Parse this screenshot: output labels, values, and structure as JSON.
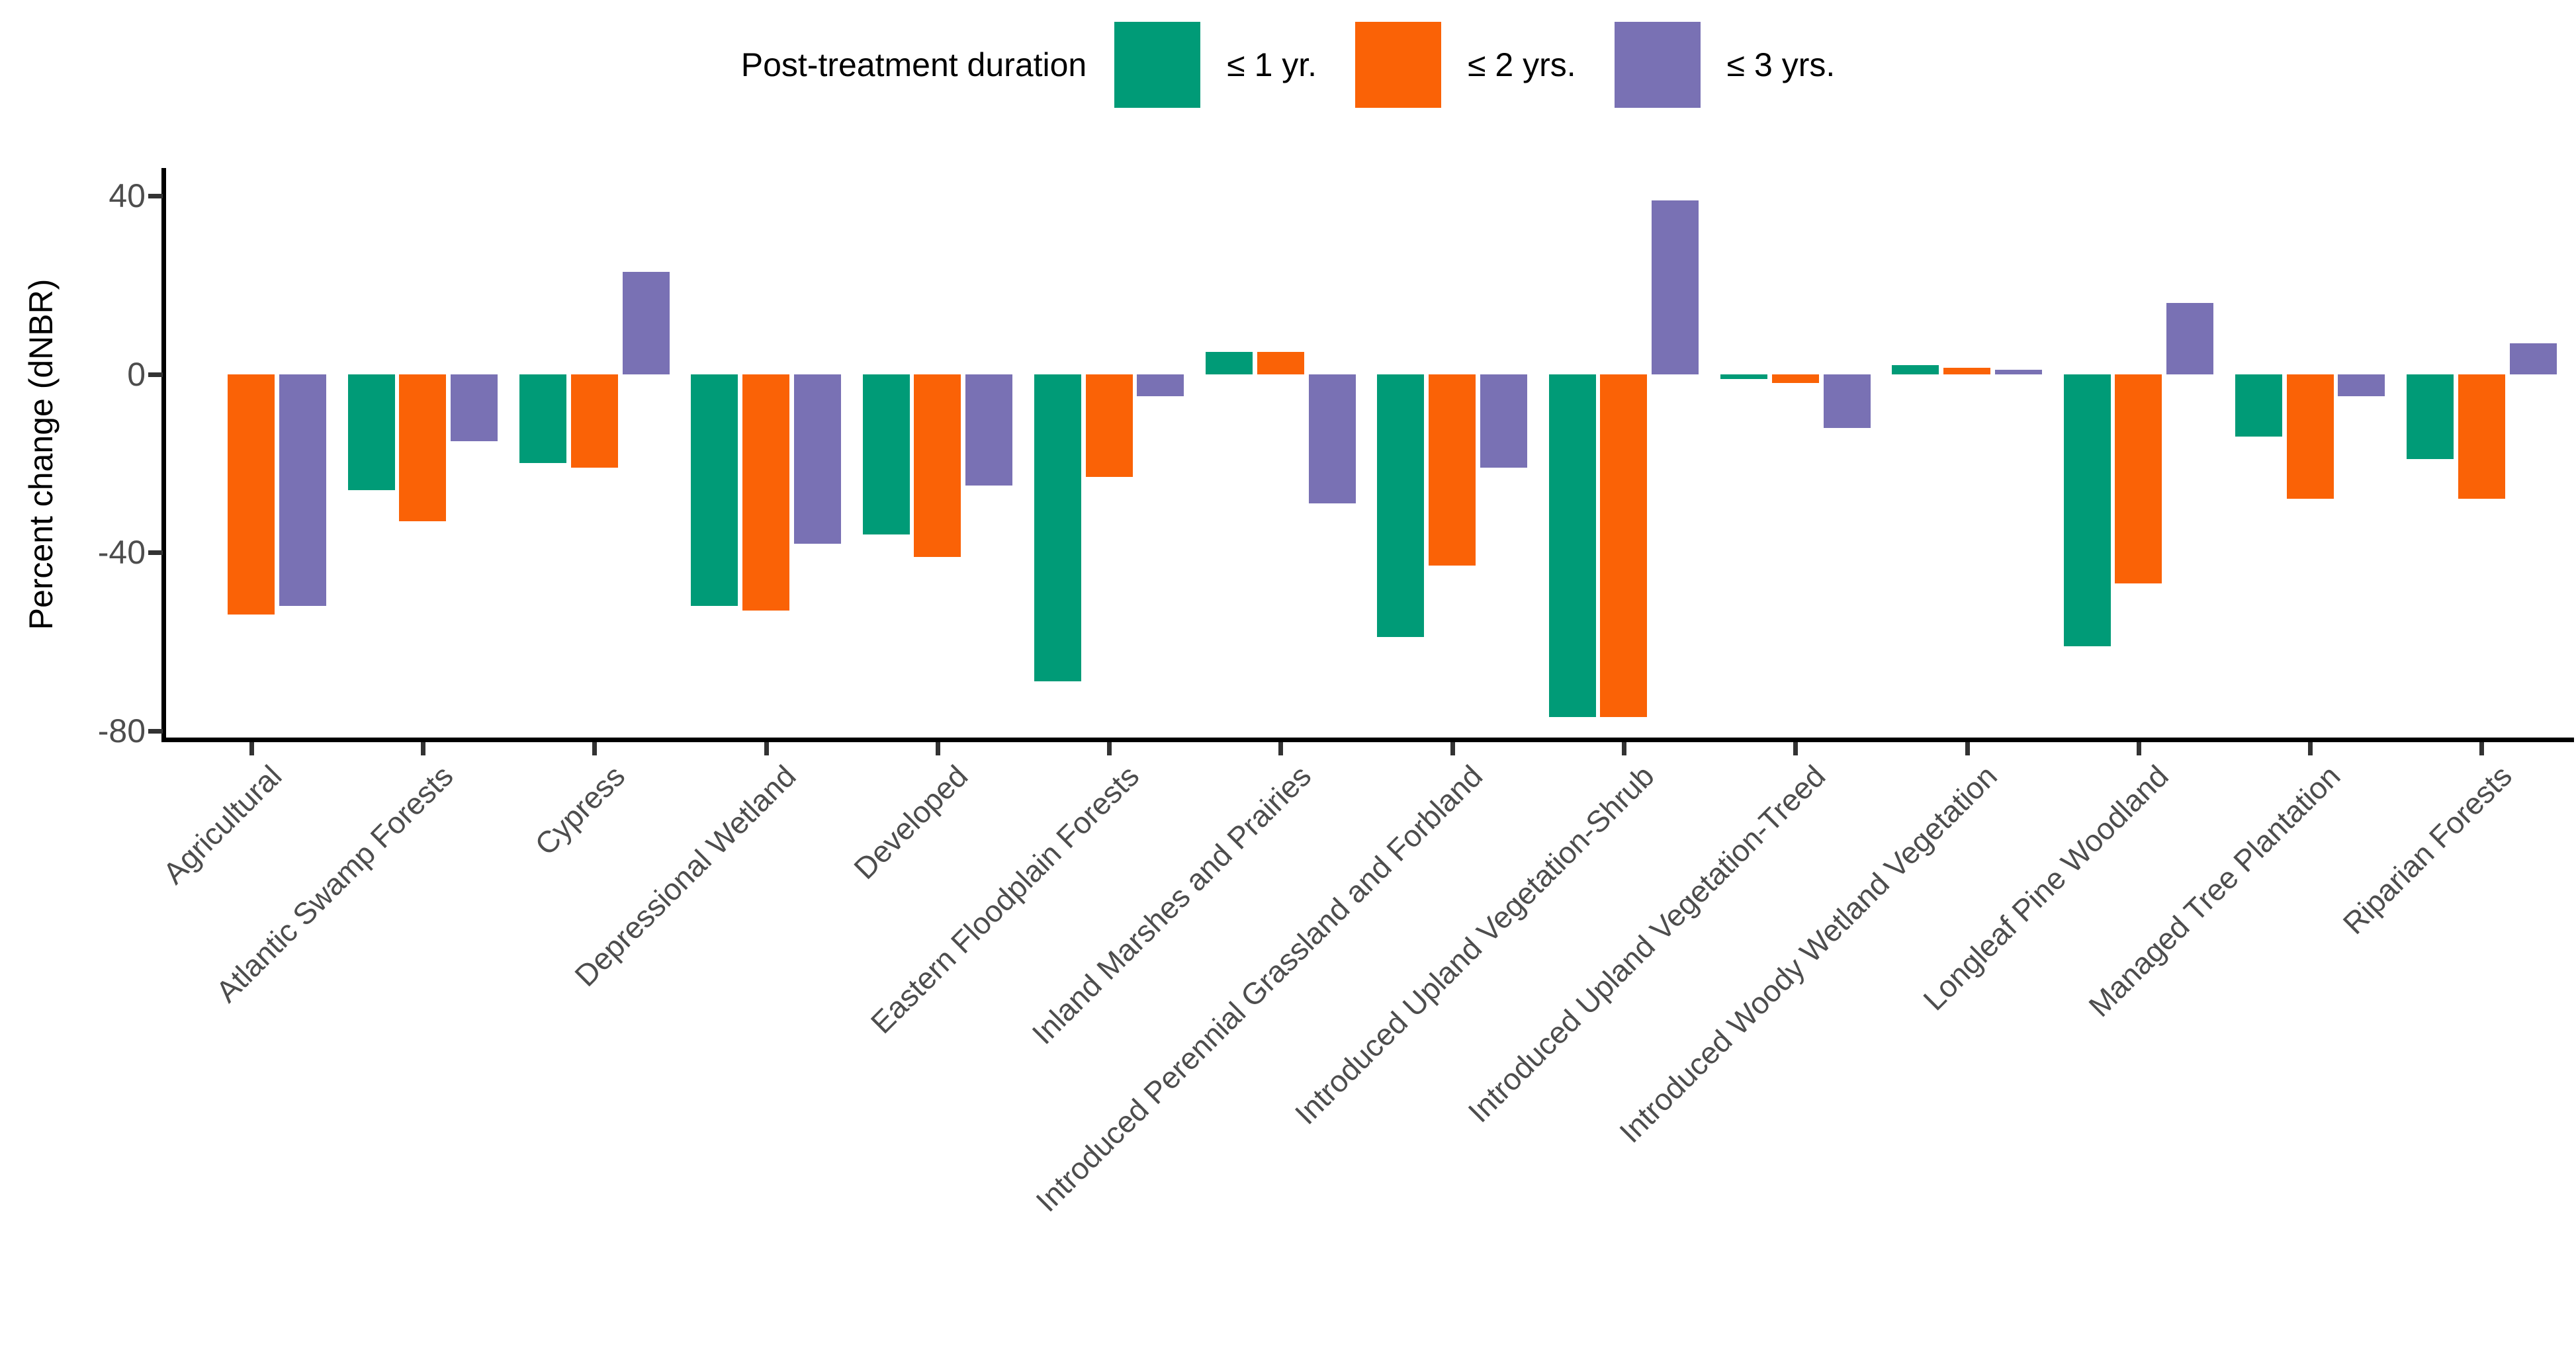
{
  "legend": {
    "title": "Post-treatment duration",
    "items": [
      {
        "label": "≤ 1 yr.",
        "color": "#009B77"
      },
      {
        "label": "≤ 2 yrs.",
        "color": "#FA6206"
      },
      {
        "label": "≤ 3 yrs.",
        "color": "#7971B4"
      }
    ]
  },
  "y_axis": {
    "title": "Percent change (dNBR)",
    "tick_labels": [
      "40",
      "0",
      "-40",
      "-80"
    ]
  },
  "chart_data": {
    "type": "bar",
    "title": "",
    "xlabel": "",
    "ylabel": "Percent change (dNBR)",
    "ylim": [
      -82,
      46
    ],
    "yticks": [
      40,
      0,
      -40,
      -80
    ],
    "grid": false,
    "legend_position": "top",
    "categories": [
      "Agricultural",
      "Atlantic Swamp Forests",
      "Cypress",
      "Depressional Wetland",
      "Developed",
      "Eastern Floodplain Forests",
      "Inland Marshes and Prairies",
      "Introduced Perennial Grassland and Forbland",
      "Introduced Upland Vegetation-Shrub",
      "Introduced Upland Vegetation-Treed",
      "Introduced Woody Wetland Vegetation",
      "Longleaf Pine Woodland",
      "Managed Tree Plantation",
      "Riparian Forests"
    ],
    "series": [
      {
        "name": "≤ 1 yr.",
        "color": "#009B77",
        "values": [
          null,
          -26,
          -20,
          -52,
          -36,
          -69,
          5,
          -59,
          -77,
          -1,
          2,
          -61,
          -14,
          -19
        ]
      },
      {
        "name": "≤ 2 yrs.",
        "color": "#FA6206",
        "values": [
          -54,
          -33,
          -21,
          -53,
          -41,
          -23,
          5,
          -43,
          -77,
          -2,
          1.5,
          -47,
          -28,
          -28
        ]
      },
      {
        "name": "≤ 3 yrs.",
        "color": "#7971B4",
        "values": [
          -52,
          -15,
          23,
          -38,
          -25,
          -5,
          -29,
          -21,
          39,
          -12,
          1,
          16,
          -5,
          7
        ]
      }
    ]
  }
}
